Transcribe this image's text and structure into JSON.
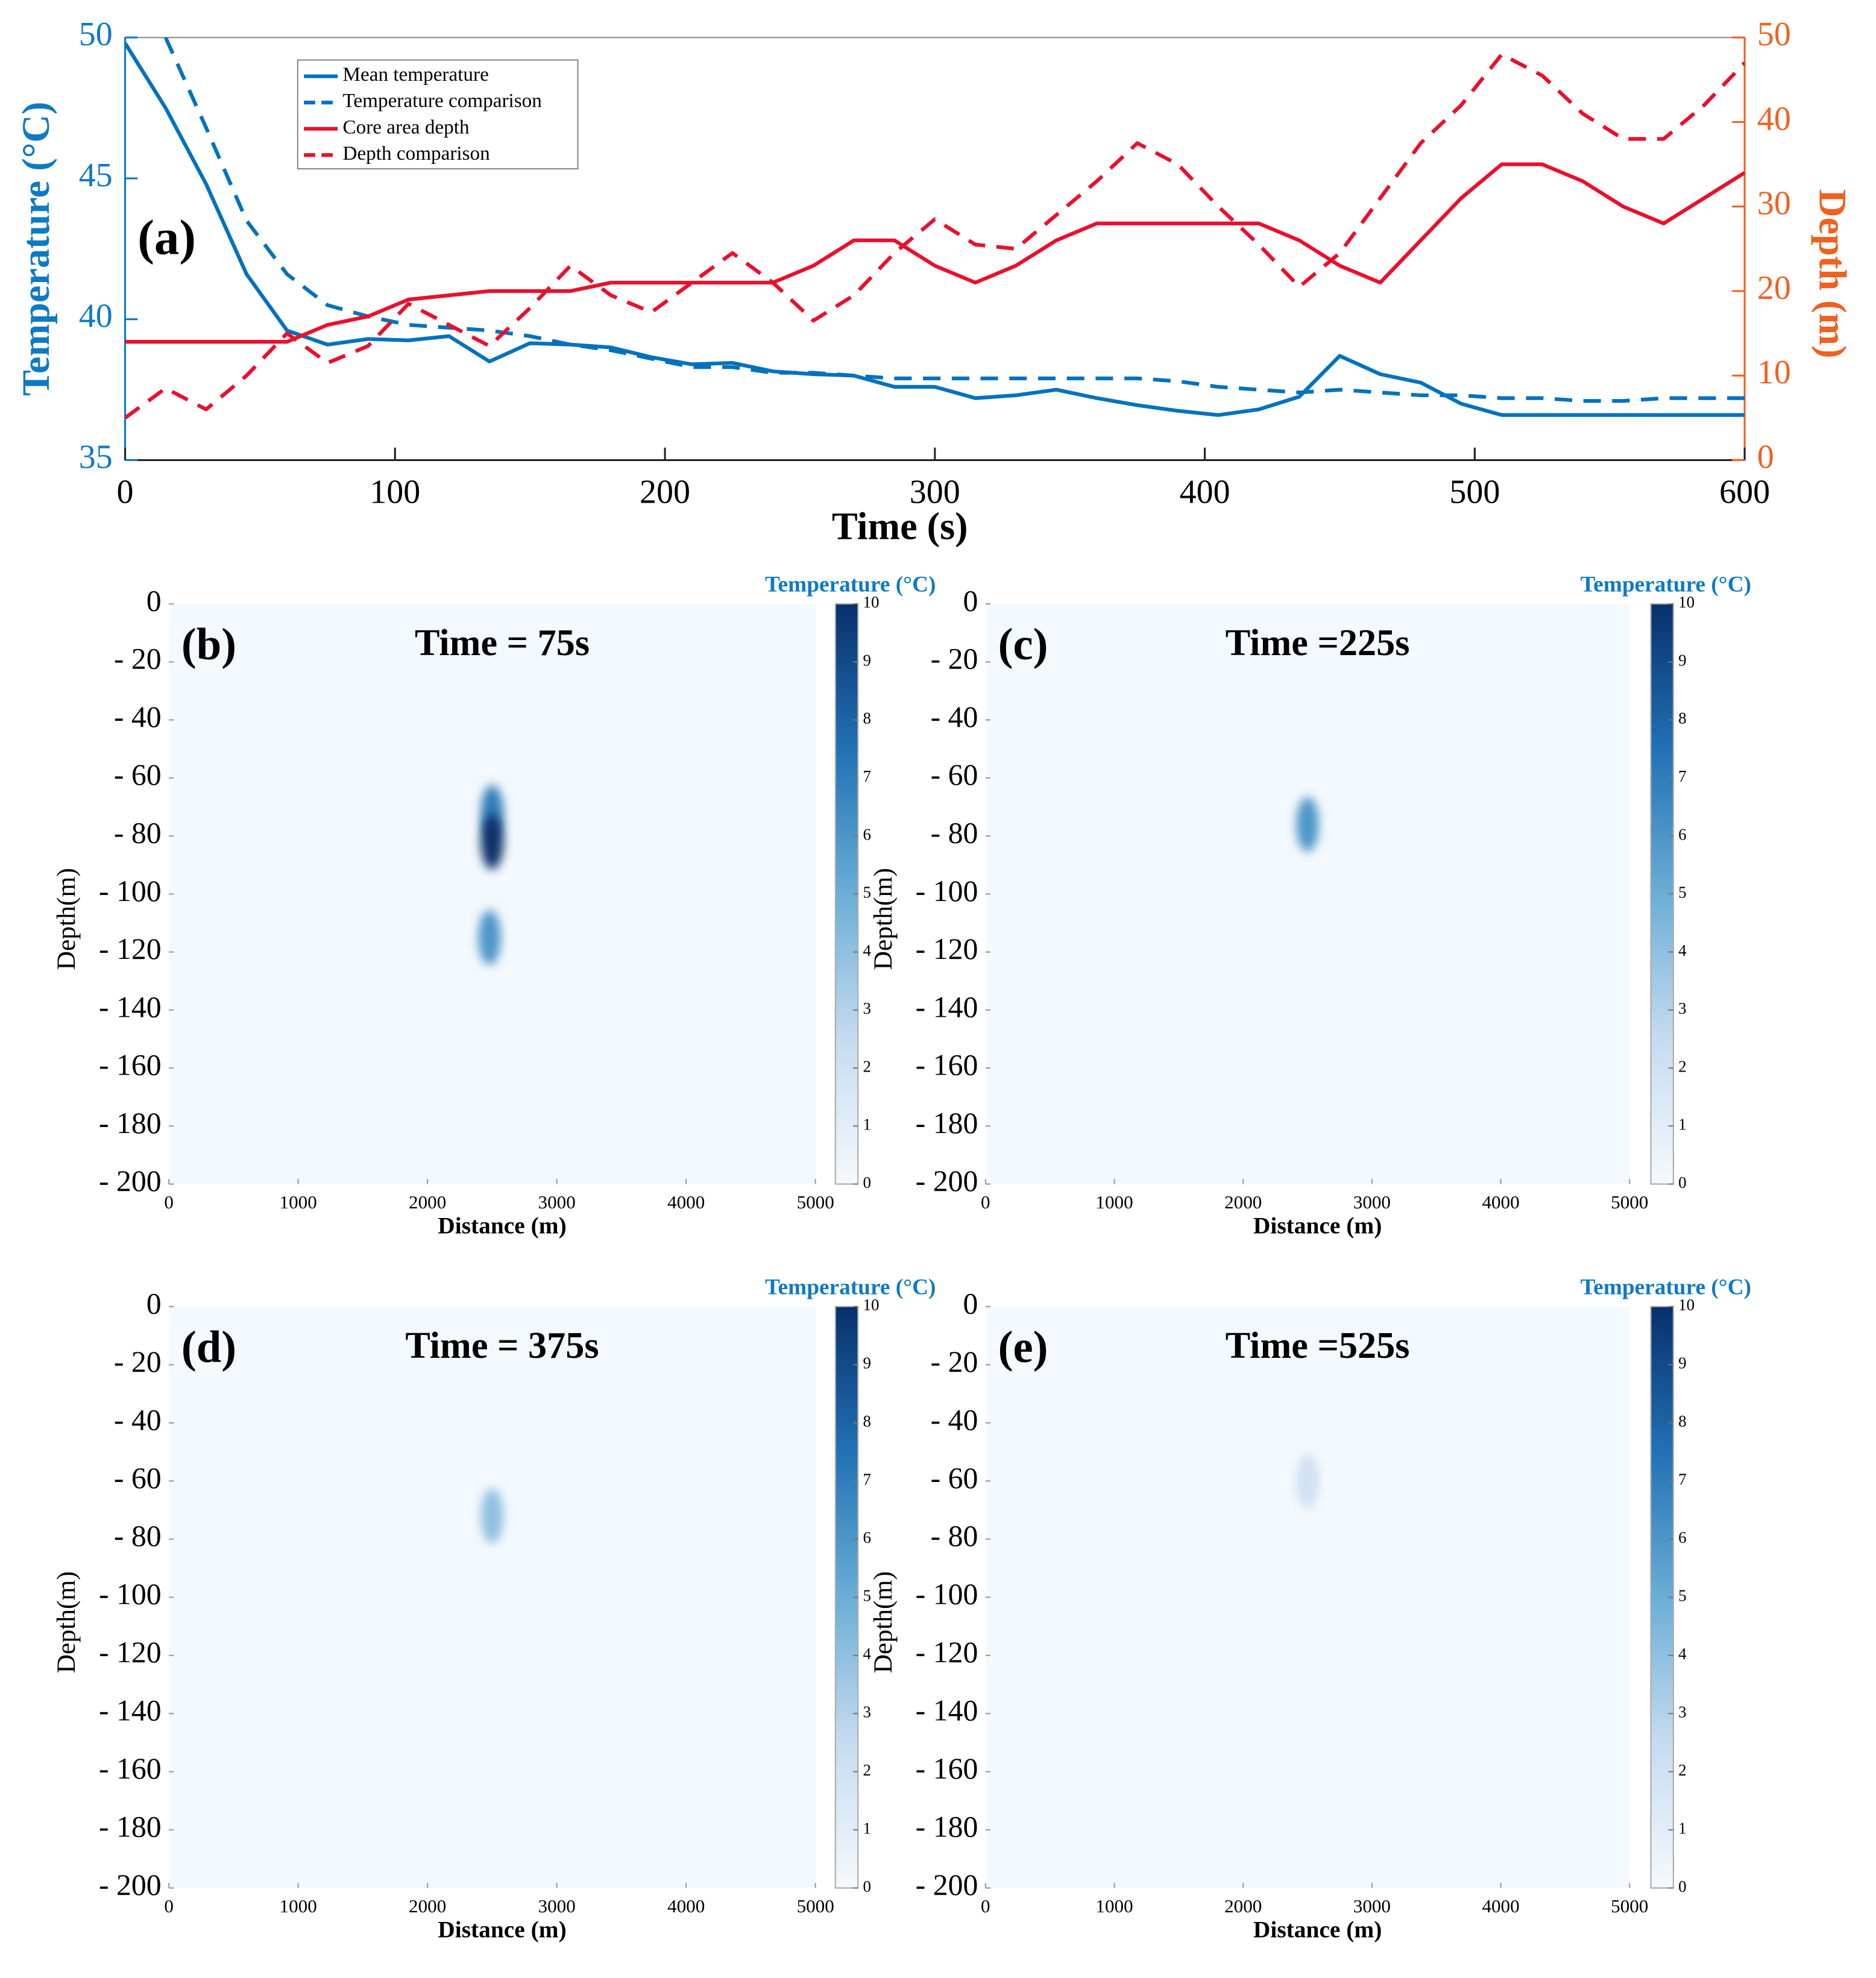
{
  "chart_data": [
    {
      "type": "line",
      "annotation": "(a)",
      "xlabel": "Time (s)",
      "ylabel": "Temperature (°C)",
      "y2label": "Depth (m)",
      "xlim": [
        0,
        600
      ],
      "xticks": [
        0,
        100,
        200,
        300,
        400,
        500,
        600
      ],
      "ylim": [
        35,
        50
      ],
      "yticks": [
        35,
        40,
        45,
        50
      ],
      "y2lim": [
        0,
        50
      ],
      "y2ticks": [
        0,
        10,
        20,
        30,
        40,
        50
      ],
      "y_color": "#0e7ac4",
      "y2_color": "#f06020",
      "x": [
        0,
        15,
        30,
        45,
        60,
        75,
        90,
        105,
        120,
        135,
        150,
        165,
        180,
        195,
        210,
        225,
        240,
        255,
        270,
        285,
        300,
        315,
        330,
        345,
        360,
        375,
        390,
        405,
        420,
        435,
        450,
        465,
        480,
        495,
        510,
        525,
        540,
        555,
        570,
        585,
        600
      ],
      "series": [
        {
          "name": "Mean temperature",
          "color": "#0072bd",
          "linestyle": "solid",
          "values": [
            49.8,
            47.5,
            44.8,
            41.6,
            39.6,
            39.1,
            39.3,
            39.25,
            39.4,
            38.5,
            39.15,
            39.1,
            39.0,
            38.65,
            38.4,
            38.45,
            38.15,
            38.05,
            38.0,
            37.6,
            37.6,
            37.2,
            37.3,
            37.5,
            37.2,
            36.95,
            36.75,
            36.6,
            36.8,
            37.25,
            38.7,
            38.05,
            37.75,
            37.0,
            36.6,
            36.6,
            36.6,
            36.6,
            36.6,
            36.6,
            36.6
          ]
        },
        {
          "name": "Temperature comparison",
          "color": "#0072bd",
          "linestyle": "dashed",
          "values": [
            null,
            50.0,
            46.8,
            43.5,
            41.6,
            40.5,
            40.1,
            39.8,
            39.7,
            39.6,
            39.4,
            39.1,
            38.9,
            38.6,
            38.3,
            38.3,
            38.1,
            38.1,
            38.0,
            37.9,
            37.9,
            37.9,
            37.9,
            37.9,
            37.9,
            37.9,
            37.8,
            37.6,
            37.5,
            37.4,
            37.5,
            37.4,
            37.3,
            37.3,
            37.2,
            37.2,
            37.1,
            37.1,
            37.2,
            37.2,
            37.2
          ]
        },
        {
          "name": "Core area depth",
          "color": "#e8112d",
          "linestyle": "solid",
          "axis": "y2",
          "values": [
            14,
            14,
            14,
            14,
            14,
            16,
            17,
            19,
            19.5,
            20,
            20,
            20,
            21,
            21,
            21,
            21,
            21,
            23,
            26,
            26,
            23,
            21,
            23,
            26,
            28,
            28,
            28,
            28,
            28,
            26,
            23,
            21,
            26,
            31,
            35,
            35,
            33,
            30,
            28,
            31,
            34
          ]
        },
        {
          "name": "Depth comparison",
          "color": "#e8112d",
          "linestyle": "dashed",
          "axis": "y2",
          "values": [
            5,
            8.5,
            6,
            10,
            15,
            11.5,
            13.5,
            18.5,
            16,
            13.5,
            18,
            23,
            19.5,
            17.5,
            21,
            24.5,
            21,
            16.5,
            19.5,
            24.5,
            28.5,
            25.5,
            25,
            29,
            33,
            37.5,
            35,
            30,
            25.5,
            20.5,
            24.5,
            31,
            37.5,
            42,
            48,
            45.5,
            41,
            38,
            38,
            42,
            47
          ]
        }
      ]
    },
    {
      "type": "heatmap",
      "label": "(b)",
      "title": "Time = 75s",
      "xlabel": "Distance (m)",
      "ylabel": "Depth(m)",
      "colorbar_label": "Temperature (°C)",
      "colormap": "Blues",
      "xlim": [
        0,
        5000
      ],
      "xticks": [
        0,
        1000,
        2000,
        3000,
        4000,
        5000
      ],
      "ylim": [
        -200,
        0
      ],
      "yticks": [
        0,
        {
          "value": -20,
          "label": "- 20"
        },
        {
          "value": -40,
          "label": "- 40"
        },
        {
          "value": -60,
          "label": "- 60"
        },
        {
          "value": -80,
          "label": "- 80"
        },
        {
          "value": -100,
          "label": "- 100"
        },
        {
          "value": -120,
          "label": "- 120"
        },
        {
          "value": -140,
          "label": "- 140"
        },
        {
          "value": -160,
          "label": "- 160"
        },
        {
          "value": -180,
          "label": "- 180"
        },
        {
          "value": -200,
          "label": "- 200"
        }
      ],
      "clim": [
        0,
        10
      ],
      "cticks": [
        0,
        1,
        2,
        3,
        4,
        5,
        6,
        7,
        8,
        9,
        10
      ],
      "spots": [
        {
          "x": 2500,
          "y": -72,
          "value": 7
        },
        {
          "x": 2500,
          "y": -82,
          "value": 10
        },
        {
          "x": 2480,
          "y": -115,
          "value": 6
        }
      ]
    },
    {
      "type": "heatmap",
      "label": "(c)",
      "title": "Time =225s",
      "xlabel": "Distance (m)",
      "ylabel": "Depth(m)",
      "colorbar_label": "Temperature (°C)",
      "colormap": "Blues",
      "xlim": [
        0,
        5000
      ],
      "xticks": [
        0,
        1000,
        2000,
        3000,
        4000,
        5000
      ],
      "ylim": [
        -200,
        0
      ],
      "yticks": [
        0,
        {
          "value": -20,
          "label": "- 20"
        },
        {
          "value": -40,
          "label": "- 40"
        },
        {
          "value": -60,
          "label": "- 60"
        },
        {
          "value": -80,
          "label": "- 80"
        },
        {
          "value": -100,
          "label": "- 100"
        },
        {
          "value": -120,
          "label": "- 120"
        },
        {
          "value": -140,
          "label": "- 140"
        },
        {
          "value": -160,
          "label": "- 160"
        },
        {
          "value": -180,
          "label": "- 180"
        },
        {
          "value": -200,
          "label": "- 200"
        }
      ],
      "clim": [
        0,
        10
      ],
      "cticks": [
        0,
        1,
        2,
        3,
        4,
        5,
        6,
        7,
        8,
        9,
        10
      ],
      "spots": [
        {
          "x": 2500,
          "y": -76,
          "value": 6
        }
      ]
    },
    {
      "type": "heatmap",
      "label": "(d)",
      "title": "Time = 375s",
      "xlabel": "Distance (m)",
      "ylabel": "Depth(m)",
      "colorbar_label": "Temperature (°C)",
      "colormap": "Blues",
      "xlim": [
        0,
        5000
      ],
      "xticks": [
        0,
        1000,
        2000,
        3000,
        4000,
        5000
      ],
      "ylim": [
        -200,
        0
      ],
      "yticks": [
        0,
        {
          "value": -20,
          "label": "- 20"
        },
        {
          "value": -40,
          "label": "- 40"
        },
        {
          "value": -60,
          "label": "- 60"
        },
        {
          "value": -80,
          "label": "- 80"
        },
        {
          "value": -100,
          "label": "- 100"
        },
        {
          "value": -120,
          "label": "- 120"
        },
        {
          "value": -140,
          "label": "- 140"
        },
        {
          "value": -160,
          "label": "- 160"
        },
        {
          "value": -180,
          "label": "- 180"
        },
        {
          "value": -200,
          "label": "- 200"
        }
      ],
      "clim": [
        0,
        10
      ],
      "cticks": [
        0,
        1,
        2,
        3,
        4,
        5,
        6,
        7,
        8,
        9,
        10
      ],
      "spots": [
        {
          "x": 2500,
          "y": -72,
          "value": 4
        }
      ]
    },
    {
      "type": "heatmap",
      "label": "(e)",
      "title": "Time =525s",
      "xlabel": "Distance (m)",
      "ylabel": "Depth(m)",
      "colorbar_label": "Temperature (°C)",
      "colormap": "Blues",
      "xlim": [
        0,
        5000
      ],
      "xticks": [
        0,
        1000,
        2000,
        3000,
        4000,
        5000
      ],
      "ylim": [
        -200,
        0
      ],
      "yticks": [
        0,
        {
          "value": -20,
          "label": "- 20"
        },
        {
          "value": -40,
          "label": "- 40"
        },
        {
          "value": -60,
          "label": "- 60"
        },
        {
          "value": -80,
          "label": "- 80"
        },
        {
          "value": -100,
          "label": "- 100"
        },
        {
          "value": -120,
          "label": "- 120"
        },
        {
          "value": -140,
          "label": "- 140"
        },
        {
          "value": -160,
          "label": "- 160"
        },
        {
          "value": -180,
          "label": "- 180"
        },
        {
          "value": -200,
          "label": "- 200"
        }
      ],
      "clim": [
        0,
        10
      ],
      "cticks": [
        0,
        1,
        2,
        3,
        4,
        5,
        6,
        7,
        8,
        9,
        10
      ],
      "spots": [
        {
          "x": 2500,
          "y": -60,
          "value": 2
        }
      ]
    }
  ]
}
